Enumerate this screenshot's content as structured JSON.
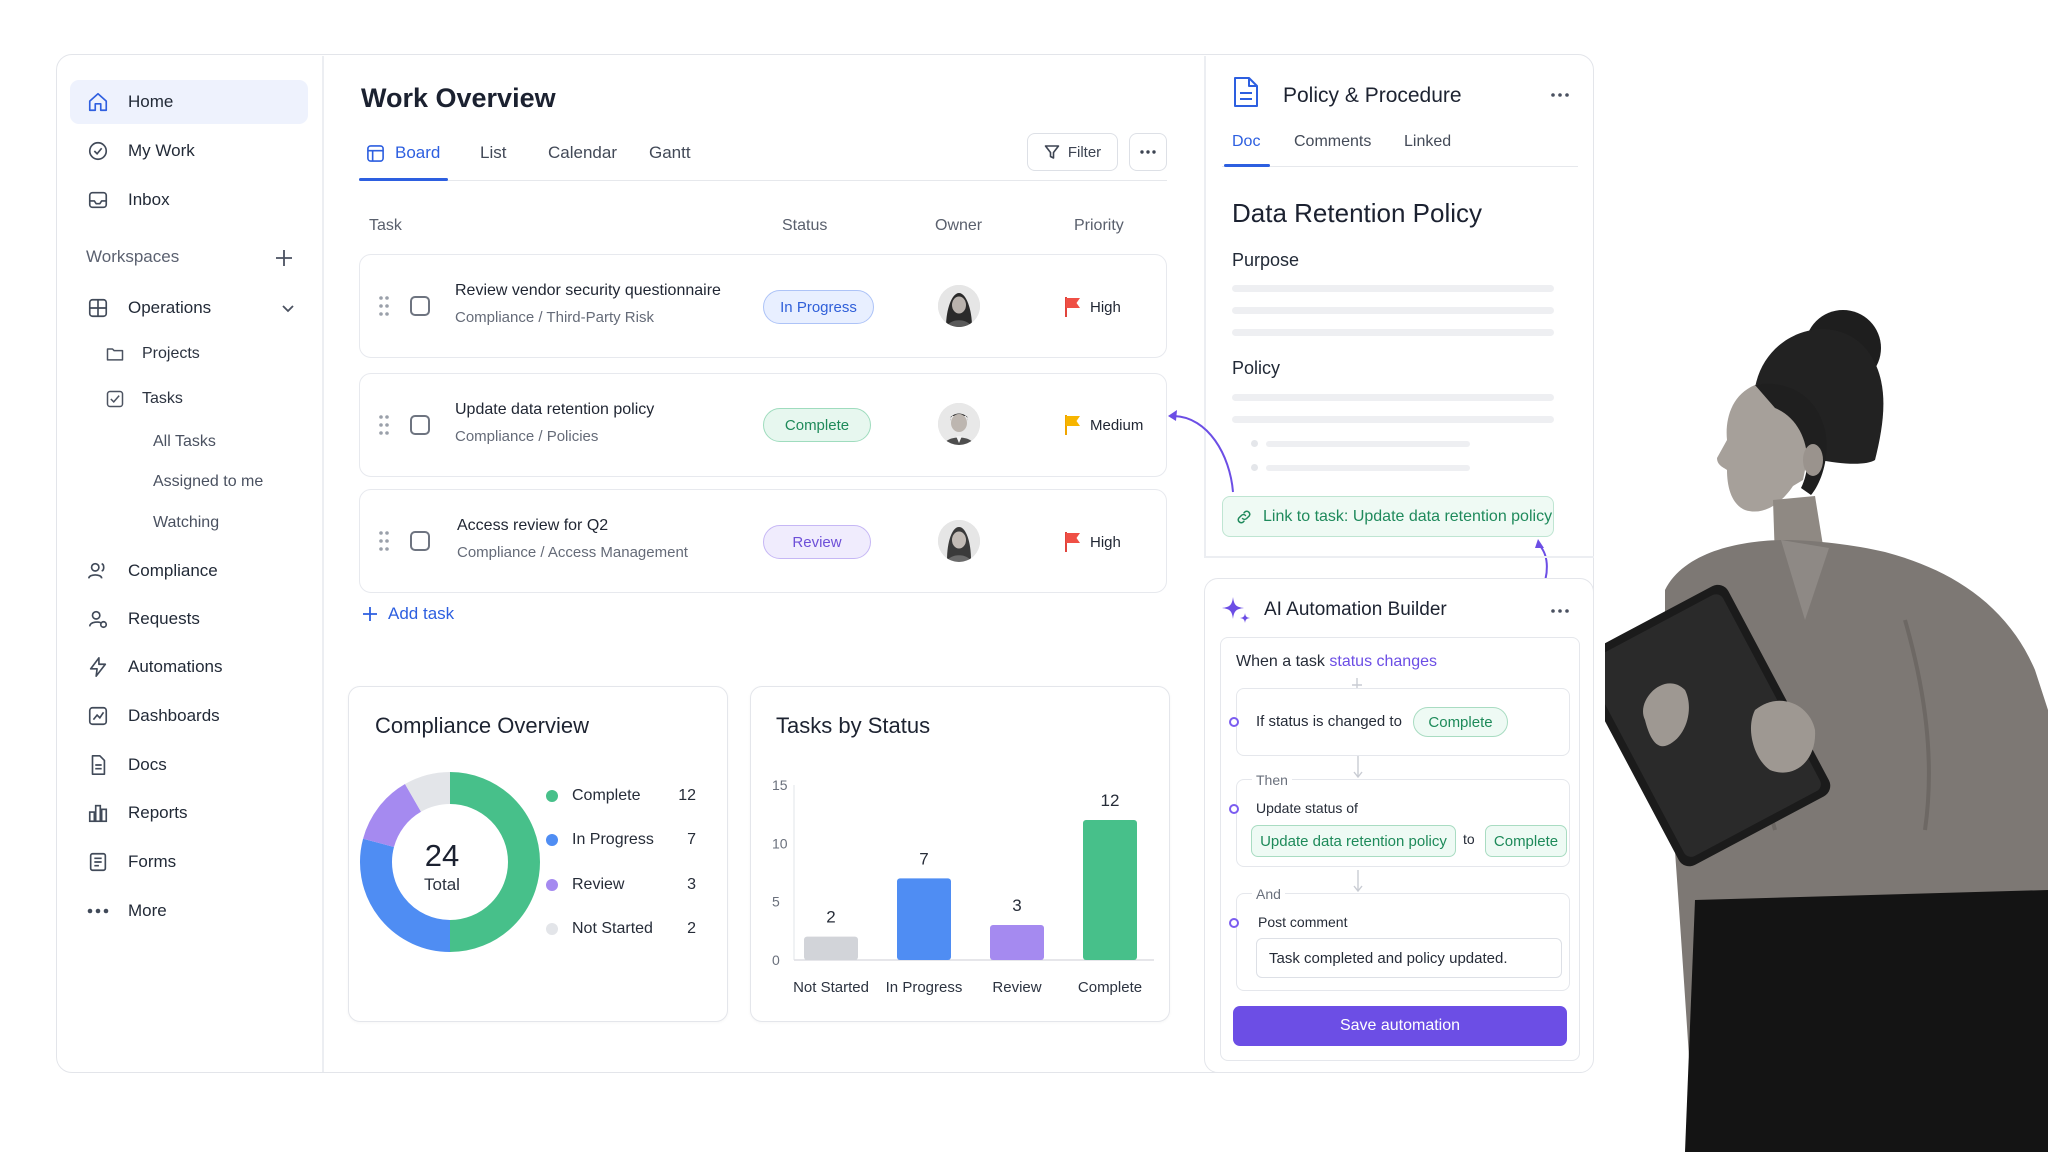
{
  "sidebar": {
    "nav": [
      "Home",
      "My Work",
      "Inbox"
    ],
    "workspaces_label": "Workspaces",
    "workspace": "Operations",
    "sub": [
      "Projects",
      "Tasks"
    ],
    "tasks_sub": [
      "All Tasks",
      "Assigned to me",
      "Watching"
    ],
    "items": [
      "Compliance",
      "Requests",
      "Automations",
      "Dashboards",
      "Docs",
      "Reports",
      "Forms",
      "More"
    ]
  },
  "main": {
    "title": "Work Overview",
    "tabs": [
      "Board",
      "List",
      "Calendar",
      "Gantt"
    ],
    "filter_label": "Filter",
    "columns": [
      "Task",
      "Status",
      "Owner",
      "Priority"
    ],
    "rows": [
      {
        "title": "Review vendor security questionnaire",
        "path": "Compliance / Third-Party Risk",
        "status": "In Progress",
        "priority": "High"
      },
      {
        "title": "Update data retention policy",
        "path": "Compliance / Policies",
        "status": "Complete",
        "priority": "Medium"
      },
      {
        "title": "Access review for Q2",
        "path": "Compliance / Access Management",
        "status": "Review",
        "priority": "High"
      }
    ],
    "add_task": "Add task"
  },
  "compliance_card": {
    "title": "Compliance Overview",
    "total": "24",
    "total_label": "Total",
    "legend": [
      {
        "label": "Complete",
        "value": "12"
      },
      {
        "label": "In Progress",
        "value": "7"
      },
      {
        "label": "Review",
        "value": "3"
      },
      {
        "label": "Not Started",
        "value": "2"
      }
    ]
  },
  "status_card": {
    "title": "Tasks by Status"
  },
  "chart_data": [
    {
      "type": "pie",
      "title": "Compliance Overview",
      "categories": [
        "Complete",
        "In Progress",
        "Review",
        "Not Started"
      ],
      "values": [
        12,
        7,
        3,
        2
      ],
      "colors": [
        "#47c08a",
        "#4f8df3",
        "#a58af0",
        "#e3e5e9"
      ],
      "center_text": "24 Total"
    },
    {
      "type": "bar",
      "title": "Tasks by Status",
      "categories": [
        "Not Started",
        "In Progress",
        "Review",
        "Complete"
      ],
      "values": [
        2,
        7,
        3,
        12
      ],
      "colors": [
        "#d2d4d9",
        "#4f8df3",
        "#a58af0",
        "#47c08a"
      ],
      "yticks": [
        "0",
        "5",
        "10",
        "15"
      ],
      "ylim": [
        0,
        15
      ]
    }
  ],
  "doc_panel": {
    "title": "Policy & Procedure",
    "tabs": [
      "Doc",
      "Comments",
      "Linked"
    ],
    "heading": "Data Retention Policy",
    "sections": [
      "Purpose",
      "Policy"
    ],
    "link_text": "Link to task: Update data retention policy"
  },
  "ai_builder": {
    "title": "AI Automation Builder",
    "trigger_prefix": "When a task ",
    "trigger_highlight": "status changes",
    "condition_text": "If status is changed to",
    "condition_value": "Complete",
    "then_label": "Then",
    "action_text": "Update status of",
    "action_task": "Update data retention policy",
    "to_label": "to",
    "action_value": "Complete",
    "and_label": "And",
    "comment_label": "Post comment",
    "comment_value": "Task completed and policy updated.",
    "save_label": "Save automation"
  },
  "colors": {
    "accent": "#2d5fe0",
    "purple": "#6c4ee5",
    "green": "#47c08a",
    "blue": "#4f8df3",
    "lilac": "#a58af0"
  }
}
